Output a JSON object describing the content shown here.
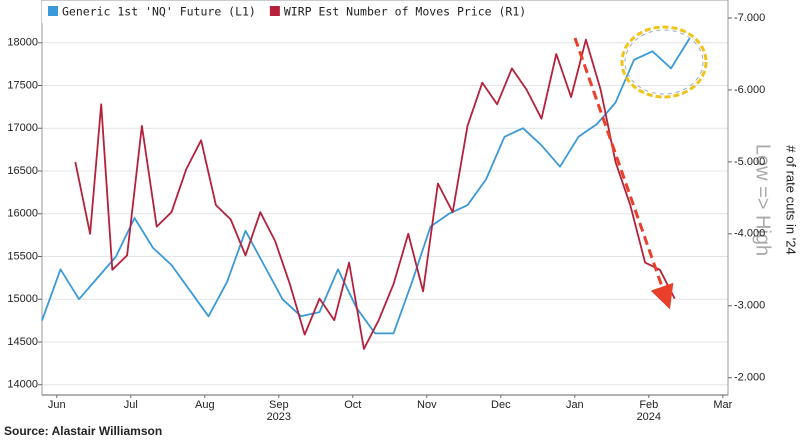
{
  "chart_data": {
    "type": "line",
    "source": "Source: Alastair Williamson",
    "y2_label": "# of rate cuts in '24",
    "y2_annotation": "Low => High",
    "xticks": [
      {
        "value": 0.5,
        "label": "Jun"
      },
      {
        "value": 1.5,
        "label": "Jul"
      },
      {
        "value": 2.5,
        "label": "Aug"
      },
      {
        "value": 3.5,
        "label": "Sep"
      },
      {
        "value": 4.5,
        "label": "Oct"
      },
      {
        "value": 5.5,
        "label": "Nov"
      },
      {
        "value": 6.5,
        "label": "Dec"
      },
      {
        "value": 7.5,
        "label": "Jan"
      },
      {
        "value": 8.5,
        "label": "Feb"
      },
      {
        "value": 9.5,
        "label": "Mar"
      }
    ],
    "year_labels": [
      {
        "value": 3.5,
        "label": "2023"
      },
      {
        "value": 8.5,
        "label": "2024"
      }
    ],
    "xlim": [
      0.3,
      9.57
    ],
    "ylim": [
      13880,
      18500
    ],
    "yticks": [
      14000,
      14500,
      15000,
      15500,
      16000,
      16500,
      17000,
      17500,
      18000
    ],
    "y2lim": [
      -1.76,
      -7.25
    ],
    "y2ticks": [
      {
        "value": -2,
        "label": "-2.000"
      },
      {
        "value": -3,
        "label": "-3.000"
      },
      {
        "value": -4,
        "label": "-4.000"
      },
      {
        "value": -5,
        "label": "-5.000"
      },
      {
        "value": -6,
        "label": "-6.000"
      },
      {
        "value": -7,
        "label": "-7.000"
      }
    ],
    "grid": true,
    "series": [
      {
        "name": "Generic 1st 'NQ' Future  (L1)",
        "color": "#3a9ad9",
        "axis": "y",
        "x": [
          0.3,
          0.55,
          0.8,
          1.05,
          1.3,
          1.55,
          1.8,
          2.05,
          2.3,
          2.55,
          2.8,
          3.05,
          3.3,
          3.55,
          3.8,
          4.05,
          4.3,
          4.55,
          4.8,
          5.05,
          5.3,
          5.55,
          5.8,
          6.05,
          6.3,
          6.55,
          6.8,
          7.05,
          7.3,
          7.55,
          7.8,
          8.05,
          8.3,
          8.55,
          8.8,
          9.05
        ],
        "values": [
          14750,
          15350,
          15000,
          15250,
          15500,
          15950,
          15600,
          15400,
          15100,
          14800,
          15200,
          15800,
          15400,
          15000,
          14800,
          14850,
          15350,
          14900,
          14600,
          14600,
          15200,
          15850,
          16000,
          16100,
          16400,
          16900,
          17000,
          16800,
          16550,
          16900,
          17050,
          17300,
          17800,
          17900,
          17700,
          18050
        ]
      },
      {
        "name": "WIRP Est Number of Moves Price  (R1)",
        "color": "#b5213b",
        "axis": "y2",
        "x": [
          0.75,
          0.95,
          1.1,
          1.25,
          1.45,
          1.65,
          1.85,
          2.05,
          2.25,
          2.45,
          2.65,
          2.85,
          3.05,
          3.25,
          3.45,
          3.65,
          3.85,
          4.05,
          4.25,
          4.45,
          4.65,
          4.85,
          5.05,
          5.25,
          5.45,
          5.65,
          5.85,
          6.05,
          6.25,
          6.45,
          6.65,
          6.85,
          7.05,
          7.25,
          7.45,
          7.65,
          7.85,
          8.05,
          8.25,
          8.45,
          8.65,
          8.85
        ],
        "values": [
          -5.0,
          -4.0,
          -5.8,
          -3.5,
          -3.7,
          -5.5,
          -4.1,
          -4.3,
          -4.9,
          -5.3,
          -4.4,
          -4.2,
          -3.7,
          -4.3,
          -3.9,
          -3.3,
          -2.6,
          -3.1,
          -2.8,
          -3.6,
          -2.4,
          -2.8,
          -3.3,
          -4.0,
          -3.2,
          -4.7,
          -4.3,
          -5.5,
          -6.1,
          -5.8,
          -6.3,
          -6.0,
          -5.6,
          -6.5,
          -5.9,
          -6.7,
          -6.0,
          -5.0,
          -4.4,
          -3.6,
          -3.5,
          -3.1
        ]
      }
    ]
  }
}
